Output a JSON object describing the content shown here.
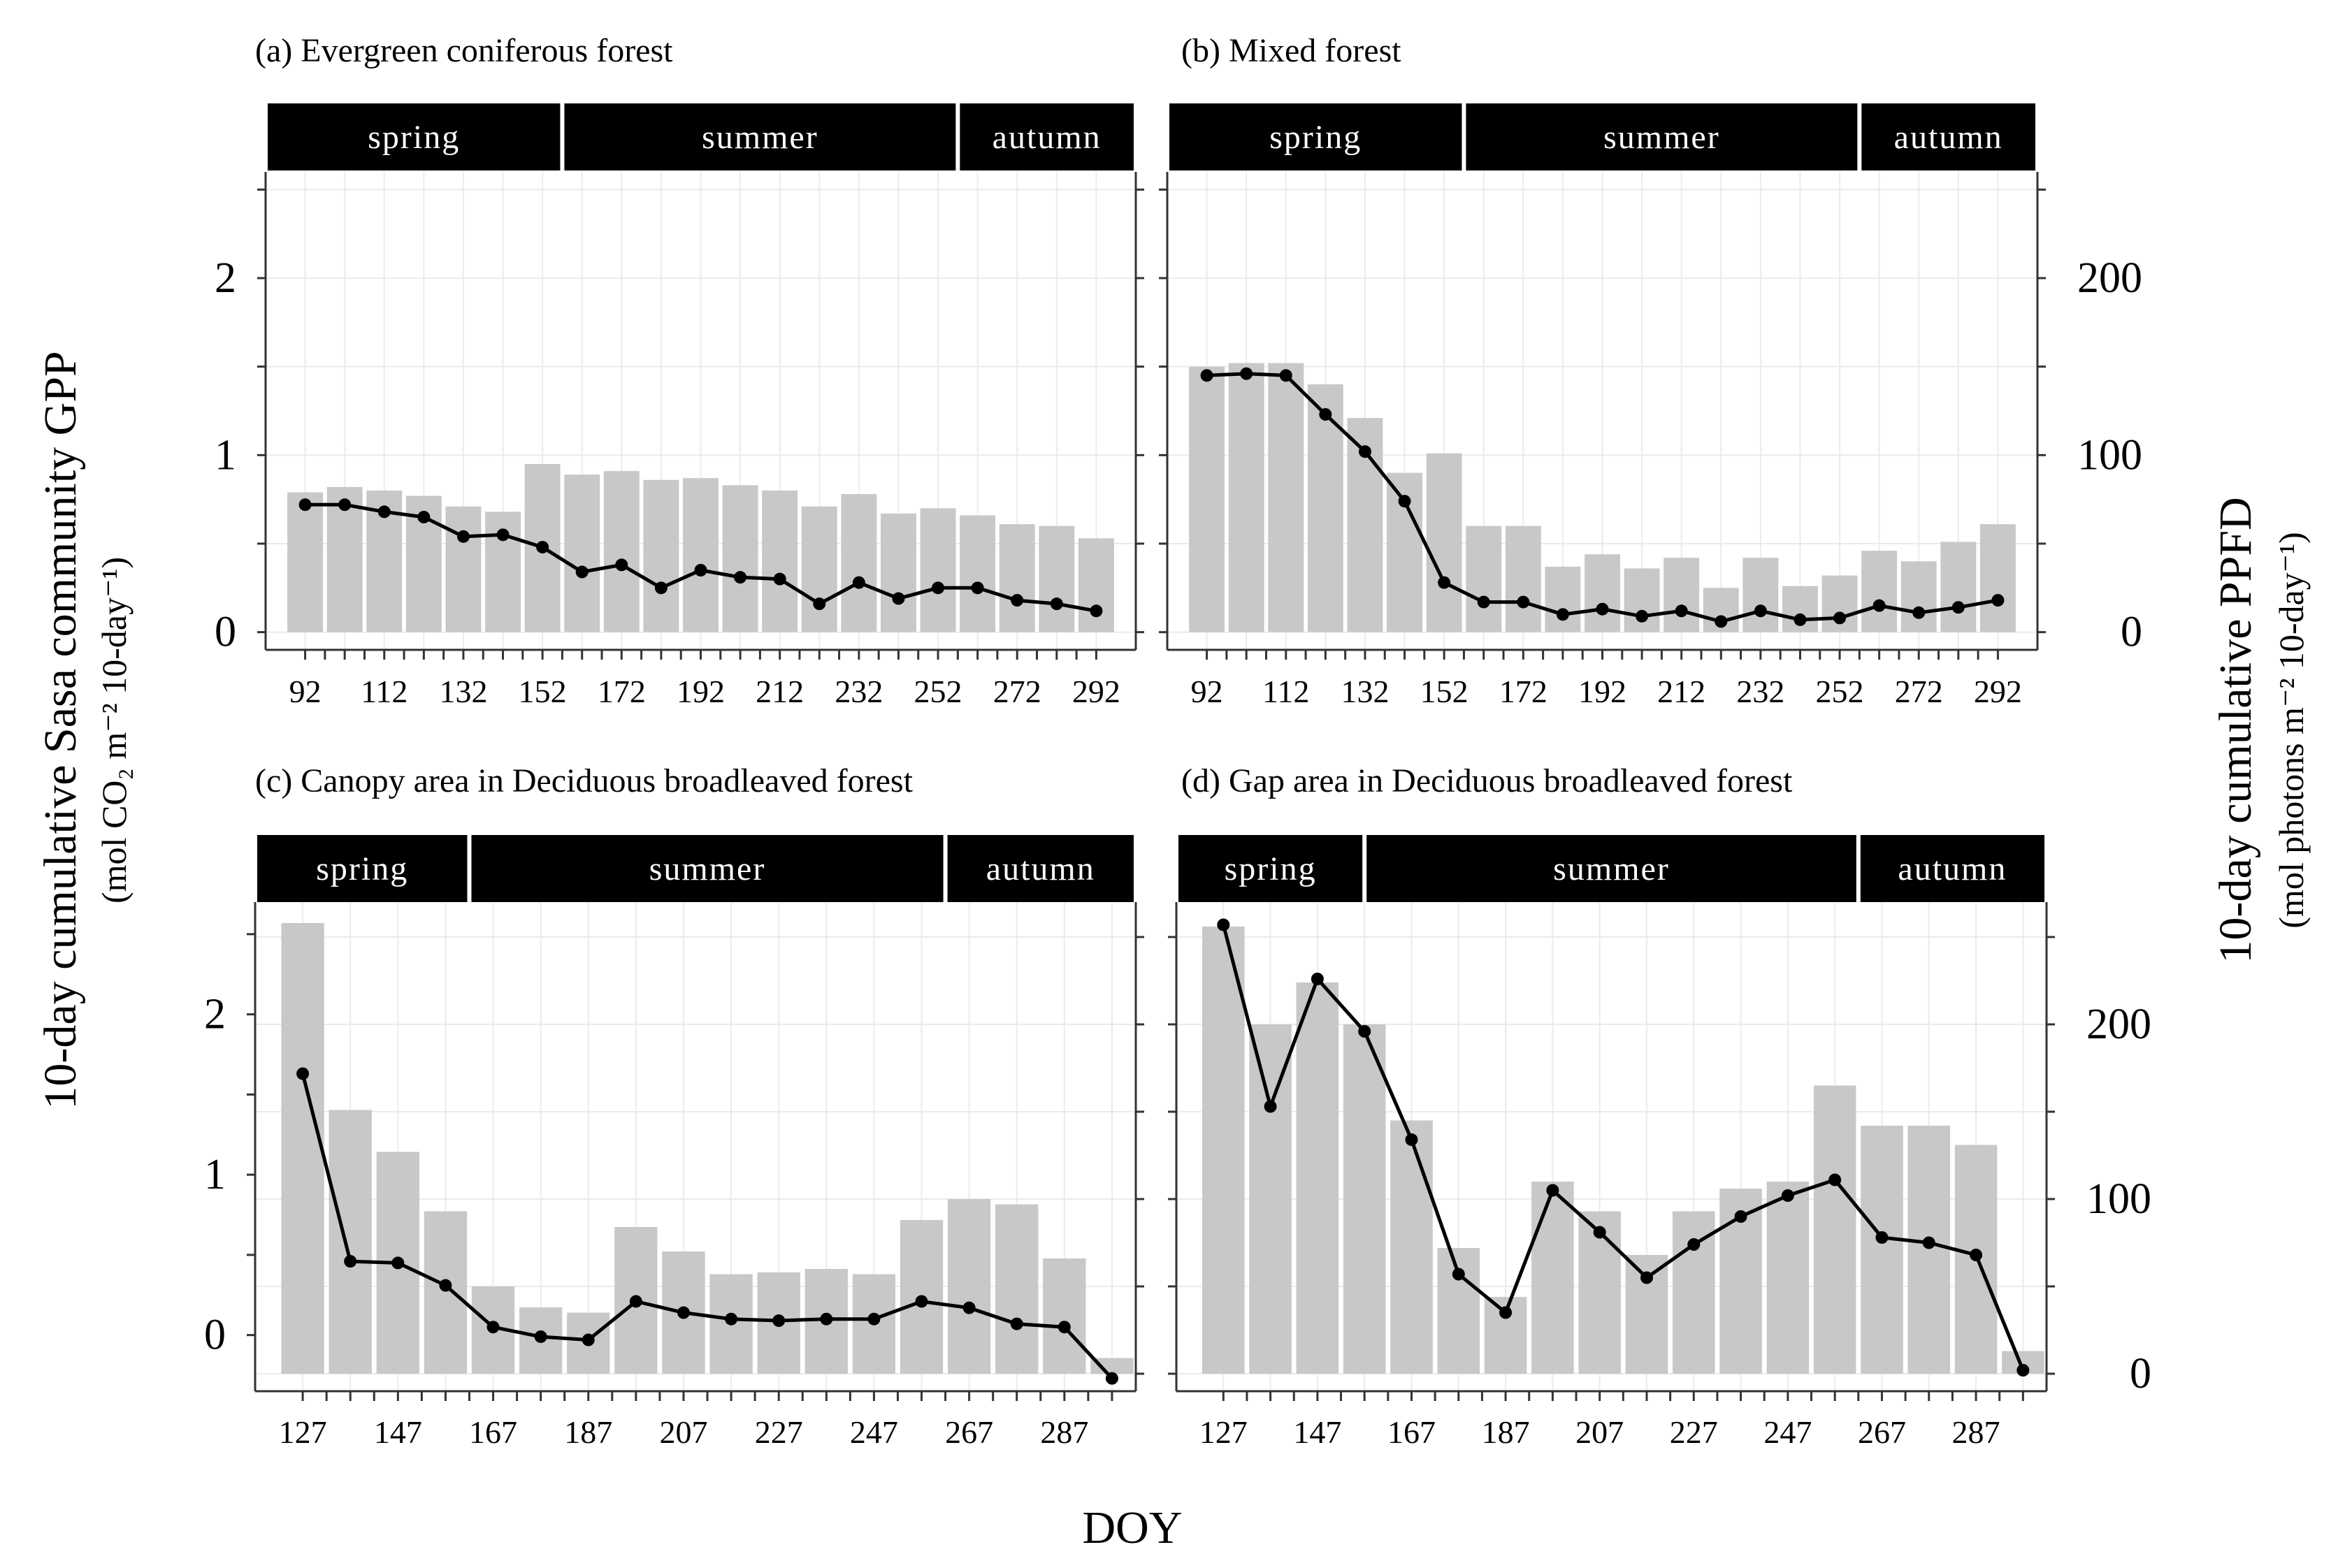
{
  "figure": {
    "left_axis_title": "10-day cumulative Sasa community GPP",
    "left_axis_sub": "(mol CO₂ m⁻² 10-day⁻¹)",
    "right_axis_title": "10-day cumulative PPFD",
    "right_axis_sub": "(mol photons m⁻² 10-day⁻¹)",
    "x_axis_title": "DOY",
    "colors": {
      "bar": "#c8c8c8",
      "line": "#000000",
      "season_bg": "#000000",
      "grid": "#ebebeb"
    }
  },
  "chart_data": [
    {
      "type": "bar+line",
      "title": "(a) Evergreen coniferous forest",
      "seasons": [
        {
          "label": "spring",
          "start": 82,
          "end": 157
        },
        {
          "label": "summer",
          "start": 157,
          "end": 257
        },
        {
          "label": "autumn",
          "start": 257,
          "end": 302
        }
      ],
      "x": [
        92,
        102,
        112,
        122,
        132,
        142,
        152,
        162,
        172,
        182,
        192,
        202,
        212,
        222,
        232,
        242,
        252,
        262,
        272,
        282,
        292
      ],
      "xticks": [
        "92",
        "112",
        "132",
        "152",
        "172",
        "192",
        "212",
        "232",
        "252",
        "272",
        "292"
      ],
      "xlim": [
        82,
        302
      ],
      "gpp_yticks": [
        "0",
        "1",
        "2"
      ],
      "gpp_ylim": [
        -0.1,
        2.6
      ],
      "ppfd_yticks": [],
      "ppfd_ylim": [
        -10,
        260
      ],
      "series": [
        {
          "name": "PPFD (bars)",
          "axis": "right",
          "values": [
            79,
            82,
            80,
            77,
            71,
            68,
            95,
            89,
            91,
            86,
            87,
            83,
            80,
            71,
            78,
            67,
            70,
            66,
            61,
            60,
            53
          ]
        },
        {
          "name": "Sasa GPP (line)",
          "axis": "left",
          "values": [
            0.72,
            0.72,
            0.68,
            0.65,
            0.54,
            0.55,
            0.48,
            0.34,
            0.38,
            0.25,
            0.35,
            0.31,
            0.3,
            0.16,
            0.28,
            0.19,
            0.25,
            0.25,
            0.18,
            0.16,
            0.12
          ]
        }
      ]
    },
    {
      "type": "bar+line",
      "title": "(b) Mixed forest",
      "seasons": [
        {
          "label": "spring",
          "start": 82,
          "end": 157
        },
        {
          "label": "summer",
          "start": 157,
          "end": 257
        },
        {
          "label": "autumn",
          "start": 257,
          "end": 302
        }
      ],
      "x": [
        92,
        102,
        112,
        122,
        132,
        142,
        152,
        162,
        172,
        182,
        192,
        202,
        212,
        222,
        232,
        242,
        252,
        262,
        272,
        282,
        292
      ],
      "xticks": [
        "92",
        "112",
        "132",
        "152",
        "172",
        "192",
        "212",
        "232",
        "252",
        "272",
        "292"
      ],
      "xlim": [
        82,
        302
      ],
      "gpp_yticks": [],
      "gpp_ylim": [
        -0.1,
        2.6
      ],
      "ppfd_yticks": [
        "0",
        "100",
        "200"
      ],
      "ppfd_ylim": [
        -10,
        260
      ],
      "series": [
        {
          "name": "PPFD (bars)",
          "axis": "right",
          "values": [
            150,
            152,
            152,
            140,
            121,
            90,
            101,
            60,
            60,
            37,
            44,
            36,
            42,
            25,
            42,
            26,
            32,
            46,
            40,
            51,
            61
          ]
        },
        {
          "name": "Sasa GPP (line)",
          "axis": "left",
          "values": [
            1.45,
            1.46,
            1.45,
            1.23,
            1.02,
            0.74,
            0.28,
            0.17,
            0.17,
            0.1,
            0.13,
            0.09,
            0.12,
            0.06,
            0.12,
            0.07,
            0.08,
            0.15,
            0.11,
            0.14,
            0.18
          ]
        }
      ]
    },
    {
      "type": "bar+line",
      "title": "(c) Canopy area in Deciduous broadleaved forest",
      "seasons": [
        {
          "label": "spring",
          "start": 117,
          "end": 162
        },
        {
          "label": "summer",
          "start": 162,
          "end": 262
        },
        {
          "label": "autumn",
          "start": 262,
          "end": 302
        }
      ],
      "x": [
        127,
        137,
        147,
        157,
        167,
        177,
        187,
        197,
        207,
        217,
        227,
        237,
        247,
        257,
        267,
        277,
        287,
        297
      ],
      "xticks": [
        "127",
        "147",
        "167",
        "187",
        "207",
        "227",
        "247",
        "267",
        "287"
      ],
      "xlim": [
        117,
        302
      ],
      "gpp_yticks": [
        "0",
        "1",
        "2"
      ],
      "gpp_ylim": [
        -0.35,
        2.7
      ],
      "ppfd_yticks": [],
      "ppfd_ylim": [
        -10,
        270
      ],
      "series": [
        {
          "name": "PPFD (bars)",
          "axis": "right",
          "values": [
            258,
            151,
            127,
            93,
            50,
            38,
            35,
            84,
            70,
            57,
            58,
            60,
            57,
            88,
            100,
            97,
            66,
            9
          ]
        },
        {
          "name": "Sasa GPP (line)",
          "axis": "left",
          "values": [
            1.63,
            0.46,
            0.45,
            0.31,
            0.05,
            -0.01,
            -0.03,
            0.21,
            0.14,
            0.1,
            0.09,
            0.1,
            0.1,
            0.21,
            0.17,
            0.07,
            0.05,
            -0.27
          ]
        }
      ]
    },
    {
      "type": "bar+line",
      "title": "(d) Gap area in Deciduous broadleaved forest",
      "seasons": [
        {
          "label": "spring",
          "start": 117,
          "end": 157
        },
        {
          "label": "summer",
          "start": 157,
          "end": 262
        },
        {
          "label": "autumn",
          "start": 262,
          "end": 302
        }
      ],
      "x": [
        127,
        137,
        147,
        157,
        167,
        177,
        187,
        197,
        207,
        217,
        227,
        237,
        247,
        257,
        267,
        277,
        287,
        297
      ],
      "xticks": [
        "127",
        "147",
        "167",
        "187",
        "207",
        "227",
        "247",
        "267",
        "287"
      ],
      "xlim": [
        117,
        302
      ],
      "gpp_yticks": [],
      "gpp_ylim": [
        -0.1,
        2.7
      ],
      "ppfd_yticks": [
        "0",
        "100",
        "200"
      ],
      "ppfd_ylim": [
        -10,
        270
      ],
      "series": [
        {
          "name": "PPFD (bars)",
          "axis": "right",
          "values": [
            256,
            200,
            224,
            200,
            145,
            72,
            44,
            110,
            93,
            68,
            93,
            106,
            110,
            165,
            142,
            142,
            131,
            13
          ]
        },
        {
          "name": "Sasa GPP (line)",
          "axis": "left",
          "values": [
            2.57,
            1.53,
            2.26,
            1.96,
            1.34,
            0.57,
            0.35,
            1.05,
            0.81,
            0.55,
            0.74,
            0.9,
            1.02,
            1.11,
            0.78,
            0.75,
            0.68,
            0.02
          ]
        }
      ]
    }
  ]
}
